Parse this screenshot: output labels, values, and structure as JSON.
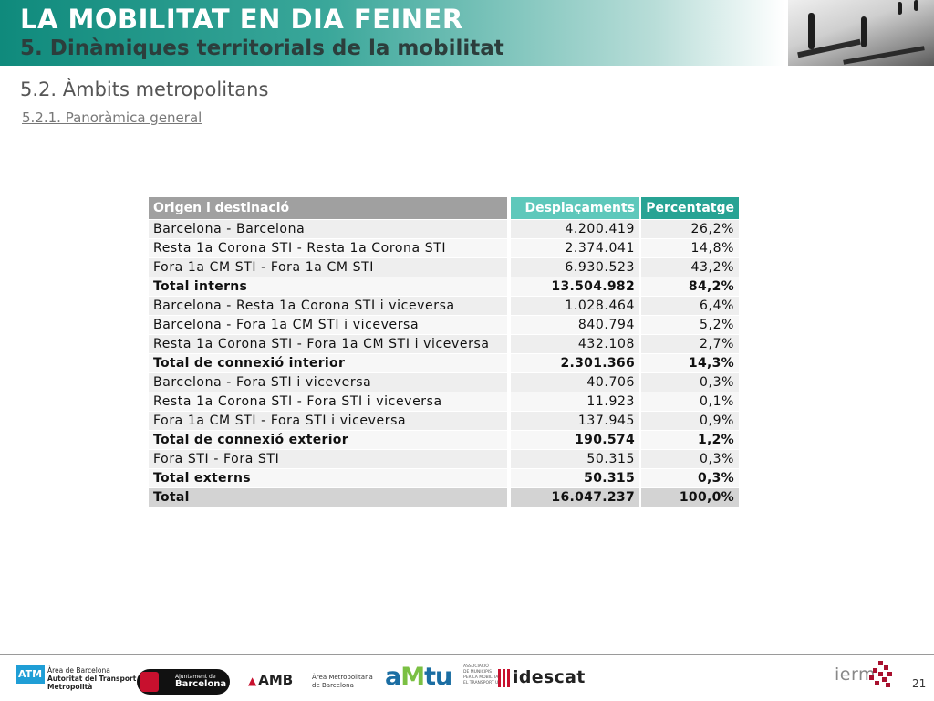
{
  "header": {
    "title": "LA MOBILITAT EN DIA FEINER",
    "subtitle": "5. Dinàmiques territorials de la mobilitat"
  },
  "section": {
    "title": "5.2. Àmbits metropolitans",
    "subsection": "5.2.1. Panoràmica general"
  },
  "table": {
    "headers": [
      "Origen i destinació",
      "Desplaçaments",
      "Percentatge"
    ],
    "rows": [
      {
        "label": "Barcelona - Barcelona",
        "value": "4.200.419",
        "pct": "26,2%",
        "kind": "item"
      },
      {
        "label": "Resta 1a Corona STI - Resta 1a Corona STI",
        "value": "2.374.041",
        "pct": "14,8%",
        "kind": "item"
      },
      {
        "label": "Fora 1a CM STI - Fora 1a CM STI",
        "value": "6.930.523",
        "pct": "43,2%",
        "kind": "item"
      },
      {
        "label": "Total interns",
        "value": "13.504.982",
        "pct": "84,2%",
        "kind": "total"
      },
      {
        "label": "Barcelona - Resta 1a Corona STI i viceversa",
        "value": "1.028.464",
        "pct": "6,4%",
        "kind": "item"
      },
      {
        "label": "Barcelona - Fora 1a CM STI i viceversa",
        "value": "840.794",
        "pct": "5,2%",
        "kind": "item"
      },
      {
        "label": "Resta 1a Corona STI - Fora 1a CM STI i viceversa",
        "value": "432.108",
        "pct": "2,7%",
        "kind": "item"
      },
      {
        "label": "Total de connexió interior",
        "value": "2.301.366",
        "pct": "14,3%",
        "kind": "total"
      },
      {
        "label": "Barcelona - Fora STI i viceversa",
        "value": "40.706",
        "pct": "0,3%",
        "kind": "item"
      },
      {
        "label": "Resta 1a Corona STI - Fora STI i viceversa",
        "value": "11.923",
        "pct": "0,1%",
        "kind": "item"
      },
      {
        "label": "Fora 1a CM STI - Fora STI i viceversa",
        "value": "137.945",
        "pct": "0,9%",
        "kind": "item"
      },
      {
        "label": "Total de connexió exterior",
        "value": "190.574",
        "pct": "1,2%",
        "kind": "total"
      },
      {
        "label": "Fora STI - Fora STI",
        "value": "50.315",
        "pct": "0,3%",
        "kind": "item"
      },
      {
        "label": "Total externs",
        "value": "50.315",
        "pct": "0,3%",
        "kind": "total"
      },
      {
        "label": "Total",
        "value": "16.047.237",
        "pct": "100,0%",
        "kind": "grand"
      }
    ]
  },
  "footer": {
    "atm_box": "ATM",
    "atm_lines": [
      "Àrea de Barcelona",
      "Autoritat del Transport",
      "Metropolità"
    ],
    "bcn_small": "Ajuntament de",
    "bcn_big": "Barcelona",
    "amb": "AMB",
    "amb_lines": [
      "Àrea Metropolitana",
      "de Barcelona"
    ],
    "amtu_a": "a",
    "amtu_m": "M",
    "amtu_tu": "tu",
    "amtu_lines": [
      "ASSOCIACIÓ",
      "DE MUNICIPIS",
      "PER LA MOBILITAT I",
      "EL TRANSPORT URBÀ"
    ],
    "idescat": "idescat",
    "iermb": "ierm",
    "page_number": "21"
  },
  "colors": {
    "banner_dark": "#0f8a7c",
    "header_gray": "#a0a0a0",
    "header_teal_light": "#5ec8bb",
    "header_teal": "#27a394"
  },
  "icons": {
    "banner_photo": "street-photo",
    "iermb_mark": "pixel-cross-logo"
  }
}
